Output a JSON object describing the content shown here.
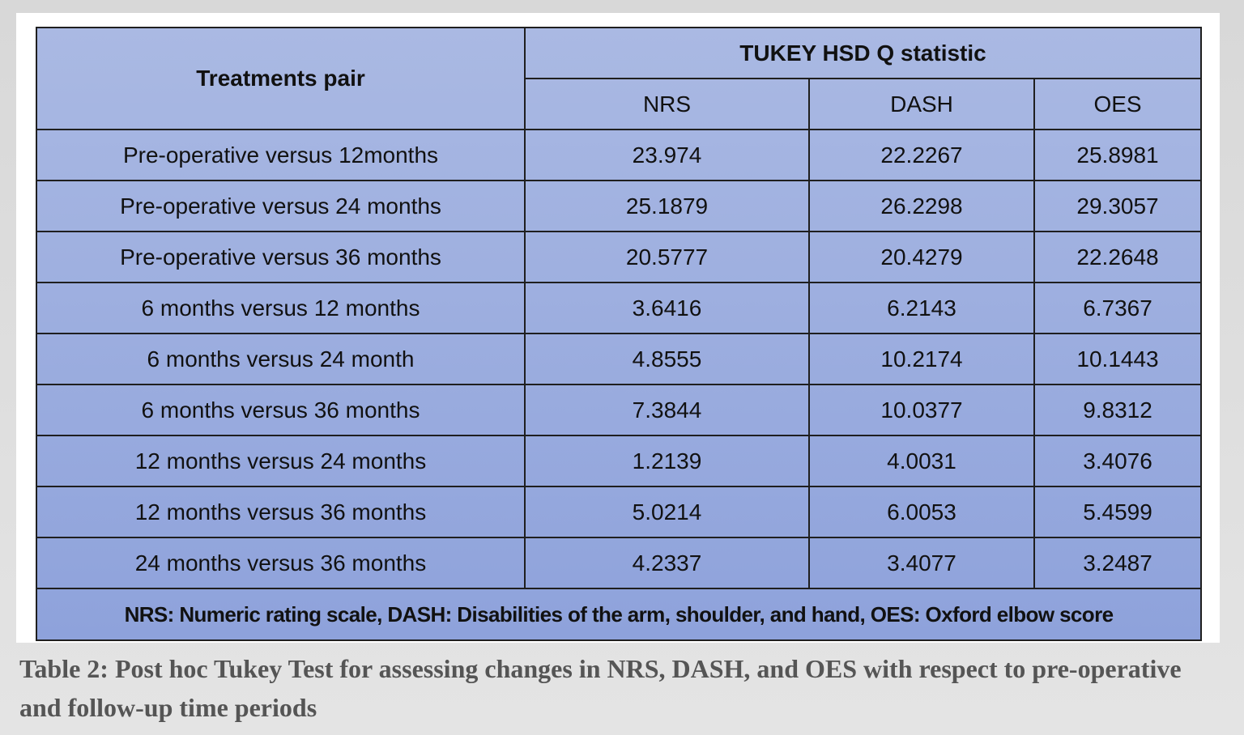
{
  "table": {
    "header": {
      "first": "Treatments pair",
      "group": "TUKEY HSD Q statistic",
      "columns": [
        "NRS",
        "DASH",
        "OES"
      ]
    },
    "rows": [
      [
        "Pre-operative versus 12months",
        "23.974",
        "22.2267",
        "25.8981"
      ],
      [
        "Pre-operative versus 24 months",
        "25.1879",
        "26.2298",
        "29.3057"
      ],
      [
        "Pre-operative versus 36 months",
        "20.5777",
        "20.4279",
        "22.2648"
      ],
      [
        "6 months versus 12 months",
        "3.6416",
        "6.2143",
        "6.7367"
      ],
      [
        "6 months versus 24 month",
        "4.8555",
        "10.2174",
        "10.1443"
      ],
      [
        "6 months versus 36 months",
        "7.3844",
        "10.0377",
        "9.8312"
      ],
      [
        "12 months versus 24 months",
        "1.2139",
        "4.0031",
        "3.4076"
      ],
      [
        "12 months versus 36 months",
        "5.0214",
        "6.0053",
        "5.4599"
      ],
      [
        "24 months versus 36 months",
        "4.2337",
        "3.4077",
        "3.2487"
      ]
    ],
    "footnote": "NRS: Numeric rating scale, DASH: Disabilities of the arm, shoulder, and hand, OES: Oxford elbow score"
  },
  "caption": {
    "label": "Table 2:",
    "text": "Post hoc Tukey Test for assessing changes in NRS, DASH, and OES with respect to pre-operative and follow-up time periods"
  }
}
